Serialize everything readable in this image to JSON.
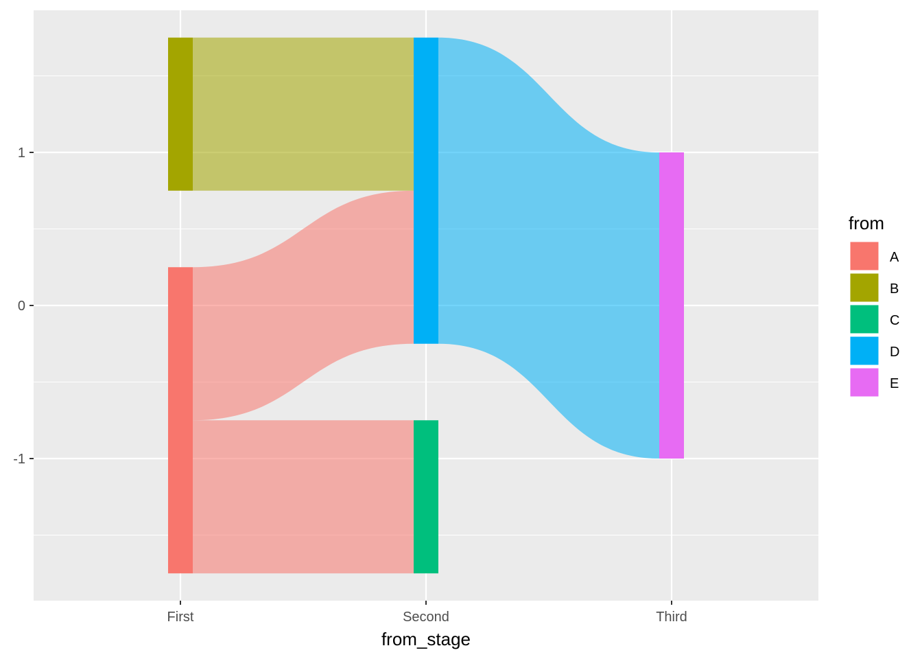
{
  "chart_data": {
    "type": "sankey",
    "xlabel": "from_stage",
    "ylabel": "",
    "stages": [
      "First",
      "Second",
      "Third"
    ],
    "ylim": [
      -1.9,
      1.9
    ],
    "y_ticks": [
      -1,
      0,
      1
    ],
    "grid": true,
    "legend_title": "from",
    "legend_position": "right",
    "nodes": [
      {
        "id": "A",
        "stage": 0,
        "y_min": -1.75,
        "y_max": 0.25,
        "color": "#F8766D"
      },
      {
        "id": "B",
        "stage": 0,
        "y_min": 0.75,
        "y_max": 1.75,
        "color": "#A3A500"
      },
      {
        "id": "C",
        "stage": 1,
        "y_min": -1.75,
        "y_max": -0.75,
        "color": "#00BF7D"
      },
      {
        "id": "D",
        "stage": 1,
        "y_min": -0.25,
        "y_max": 1.75,
        "color": "#00B0F6"
      },
      {
        "id": "E",
        "stage": 2,
        "y_min": -1,
        "y_max": 1,
        "color": "#E76BF3"
      }
    ],
    "flows": [
      {
        "from": "A",
        "to": "C",
        "value": 1,
        "from_y": [
          -1.75,
          -0.75
        ],
        "to_y": [
          -1.75,
          -0.75
        ]
      },
      {
        "from": "A",
        "to": "D",
        "value": 1,
        "from_y": [
          -0.75,
          0.25
        ],
        "to_y": [
          -0.25,
          0.75
        ]
      },
      {
        "from": "B",
        "to": "D",
        "value": 1,
        "from_y": [
          0.75,
          1.75
        ],
        "to_y": [
          0.75,
          1.75
        ]
      },
      {
        "from": "D",
        "to": "E",
        "value": 2,
        "from_y": [
          -0.25,
          1.75
        ],
        "to_y": [
          -1,
          1
        ]
      }
    ],
    "legend": [
      {
        "label": "A",
        "color": "#F8766D"
      },
      {
        "label": "B",
        "color": "#A3A500"
      },
      {
        "label": "C",
        "color": "#00BF7D"
      },
      {
        "label": "D",
        "color": "#00B0F6"
      },
      {
        "label": "E",
        "color": "#E76BF3"
      }
    ]
  }
}
